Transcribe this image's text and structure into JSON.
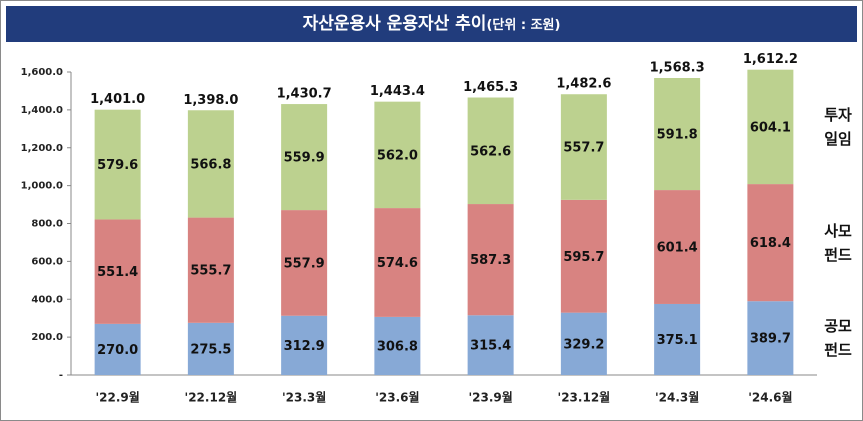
{
  "chart_data": {
    "type": "stacked_bar",
    "title": "자산운용사 운용자산 추이",
    "unit": "(단위 : 조원)",
    "categories": [
      "'22.9월",
      "'22.12월",
      "'23.3월",
      "'23.6월",
      "'23.9월",
      "'23.12월",
      "'24.3월",
      "'24.6월"
    ],
    "series": [
      {
        "name": "공모펀드",
        "color": "#87a9d6",
        "values": [
          270.0,
          275.5,
          312.9,
          306.8,
          315.4,
          329.2,
          375.1,
          389.7
        ],
        "value_labels": [
          "270.0",
          "275.5",
          "312.9",
          "306.8",
          "315.4",
          "329.2",
          "375.1",
          "389.7"
        ]
      },
      {
        "name": "사모펀드",
        "color": "#d88381",
        "values": [
          551.4,
          555.7,
          557.9,
          574.6,
          587.3,
          595.7,
          601.4,
          618.4
        ],
        "value_labels": [
          "551.4",
          "555.7",
          "557.9",
          "574.6",
          "587.3",
          "595.7",
          "601.4",
          "618.4"
        ]
      },
      {
        "name": "투자일임",
        "color": "#bcd18f",
        "values": [
          579.6,
          566.8,
          559.9,
          562.0,
          562.6,
          557.7,
          591.8,
          604.1
        ],
        "value_labels": [
          "579.6",
          "566.8",
          "559.9",
          "562.0",
          "562.6",
          "557.7",
          "591.8",
          "604.1"
        ]
      }
    ],
    "totals": [
      1401.0,
      1398.0,
      1430.7,
      1443.4,
      1465.3,
      1482.6,
      1568.3,
      1612.2
    ],
    "total_labels": [
      "1,401.0",
      "1,398.0",
      "1,430.7",
      "1,443.4",
      "1,465.3",
      "1,482.6",
      "1,568.3",
      "1,612.2"
    ],
    "ylim": [
      0,
      1600
    ],
    "yticks": [
      {
        "value": 0,
        "label": "-"
      },
      {
        "value": 200,
        "label": "200.0"
      },
      {
        "value": 400,
        "label": "400.0"
      },
      {
        "value": 600,
        "label": "600.0"
      },
      {
        "value": 800,
        "label": "800.0"
      },
      {
        "value": 1000,
        "label": "1,000.0"
      },
      {
        "value": 1200,
        "label": "1,200.0"
      },
      {
        "value": 1400,
        "label": "1,400.0"
      },
      {
        "value": 1600,
        "label": "1,600.0"
      }
    ],
    "grid": false,
    "legend": "right"
  }
}
